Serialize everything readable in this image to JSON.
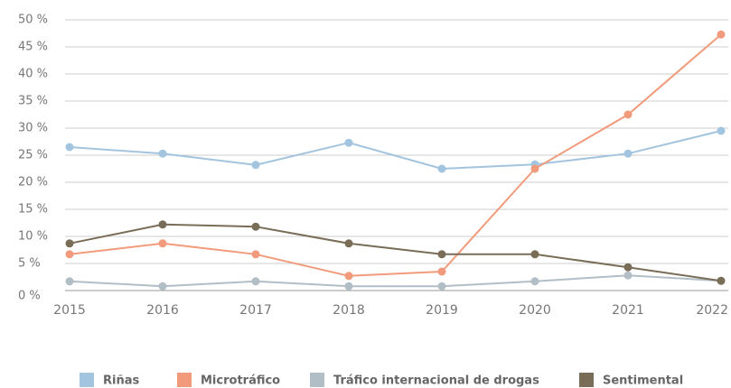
{
  "chart_data": {
    "type": "line",
    "x": [
      2015,
      2016,
      2017,
      2018,
      2019,
      2020,
      2021,
      2022
    ],
    "xlim": [
      2015,
      2022
    ],
    "ylim": [
      0,
      50
    ],
    "yticks": [
      {
        "value": 0,
        "label": "0 %"
      },
      {
        "value": 5,
        "label": "5 %"
      },
      {
        "value": 10,
        "label": "10 %"
      },
      {
        "value": 15,
        "label": "15 %"
      },
      {
        "value": 20,
        "label": "20 %"
      },
      {
        "value": 25,
        "label": "25 %"
      },
      {
        "value": 30,
        "label": "30 %"
      },
      {
        "value": 35,
        "label": "35 %"
      },
      {
        "value": 40,
        "label": "40 %"
      },
      {
        "value": 45,
        "label": "45 %"
      },
      {
        "value": 50,
        "label": "50 %"
      }
    ],
    "grid": true,
    "legend": "bottom",
    "series": [
      {
        "name": "Riñas",
        "color": "#a3c4de",
        "values": [
          26.5,
          25.3,
          23.2,
          27.3,
          22.5,
          23.3,
          25.3,
          29.5
        ]
      },
      {
        "name": "Microtráfico",
        "color": "#f19b7c",
        "values": [
          6.7,
          8.7,
          6.7,
          2.7,
          3.5,
          22.5,
          32.5,
          47.3
        ]
      },
      {
        "name": "Tráfico internacional de drogas",
        "color": "#b2bec6",
        "values": [
          1.7,
          0.8,
          1.7,
          0.8,
          0.8,
          1.7,
          2.8,
          1.8
        ]
      },
      {
        "name": "Sentimental",
        "color": "#7a6d58",
        "values": [
          8.7,
          12.2,
          11.8,
          8.7,
          6.7,
          6.7,
          4.3,
          1.8
        ]
      }
    ]
  }
}
